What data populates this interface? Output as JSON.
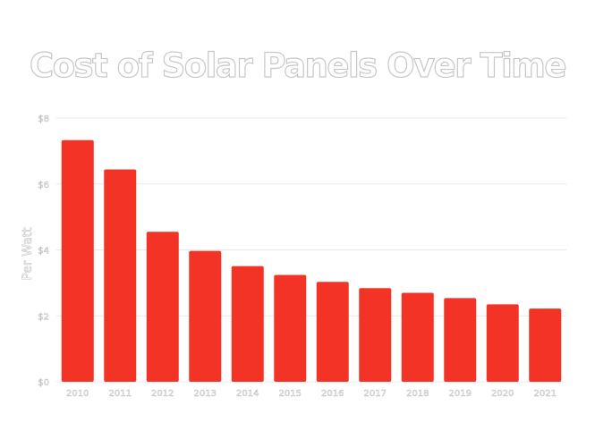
{
  "chart_data": {
    "type": "bar",
    "title": "Cost of Solar Panels Over Time",
    "xlabel": "",
    "ylabel": "Per Watt",
    "categories": [
      "2010",
      "2011",
      "2012",
      "2013",
      "2014",
      "2015",
      "2016",
      "2017",
      "2018",
      "2019",
      "2020",
      "2021"
    ],
    "values": [
      7.33,
      6.44,
      4.55,
      3.97,
      3.51,
      3.24,
      3.03,
      2.84,
      2.7,
      2.54,
      2.35,
      2.22
    ],
    "ylim": [
      0,
      8
    ],
    "yticks": [
      0,
      2,
      4,
      6,
      8
    ],
    "ytick_labels": [
      "$0",
      "$2",
      "$4",
      "$6",
      "$8"
    ],
    "grid": true,
    "bar_color": "#f23325"
  }
}
